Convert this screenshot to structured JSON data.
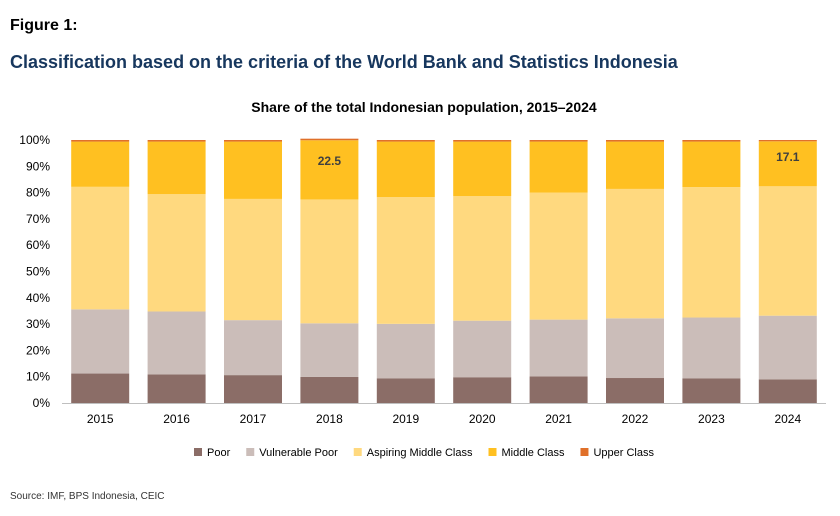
{
  "header": {
    "figure_label": "Figure 1:",
    "title": "Classification based on the criteria of the World Bank and Statistics Indonesia"
  },
  "footer": {
    "source": "Source: IMF, BPS Indonesia, CEIC"
  },
  "chart_data": {
    "type": "bar",
    "stacked": true,
    "title": "Share of the total Indonesian population, 2015–2024",
    "xlabel": "",
    "ylabel": "",
    "ylim": [
      0,
      100
    ],
    "y_ticks": [
      "0%",
      "10%",
      "20%",
      "30%",
      "40%",
      "50%",
      "60%",
      "70%",
      "80%",
      "90%",
      "100%"
    ],
    "grid": false,
    "legend_position": "bottom",
    "categories": [
      "2015",
      "2016",
      "2017",
      "2018",
      "2019",
      "2020",
      "2021",
      "2022",
      "2023",
      "2024"
    ],
    "series": [
      {
        "name": "Poor",
        "color": "#8b6d67",
        "values": [
          11.2,
          10.9,
          10.6,
          9.9,
          9.4,
          9.8,
          10.1,
          9.5,
          9.4,
          9.0
        ]
      },
      {
        "name": "Vulnerable Poor",
        "color": "#cbbdb9",
        "values": [
          24.4,
          23.9,
          20.9,
          20.4,
          20.7,
          21.5,
          21.6,
          22.7,
          23.1,
          24.2
        ]
      },
      {
        "name": "Aspiring Middle Class",
        "color": "#ffd97f",
        "values": [
          46.6,
          44.6,
          46.1,
          47.1,
          48.2,
          47.4,
          48.3,
          49.2,
          49.6,
          49.2
        ]
      },
      {
        "name": "Middle Class",
        "color": "#ffc021",
        "values": [
          17.2,
          20.0,
          21.8,
          22.5,
          21.1,
          20.7,
          19.4,
          18.0,
          17.3,
          17.1
        ]
      },
      {
        "name": "Upper Class",
        "color": "#e0702a",
        "values": [
          0.6,
          0.6,
          0.6,
          0.6,
          0.6,
          0.6,
          0.6,
          0.6,
          0.6,
          0.5
        ]
      }
    ],
    "annotations": [
      {
        "text": "22.5",
        "category": "2018",
        "series": "Middle Class"
      },
      {
        "text": "17.1",
        "category": "2024",
        "series": "Middle Class"
      }
    ]
  }
}
